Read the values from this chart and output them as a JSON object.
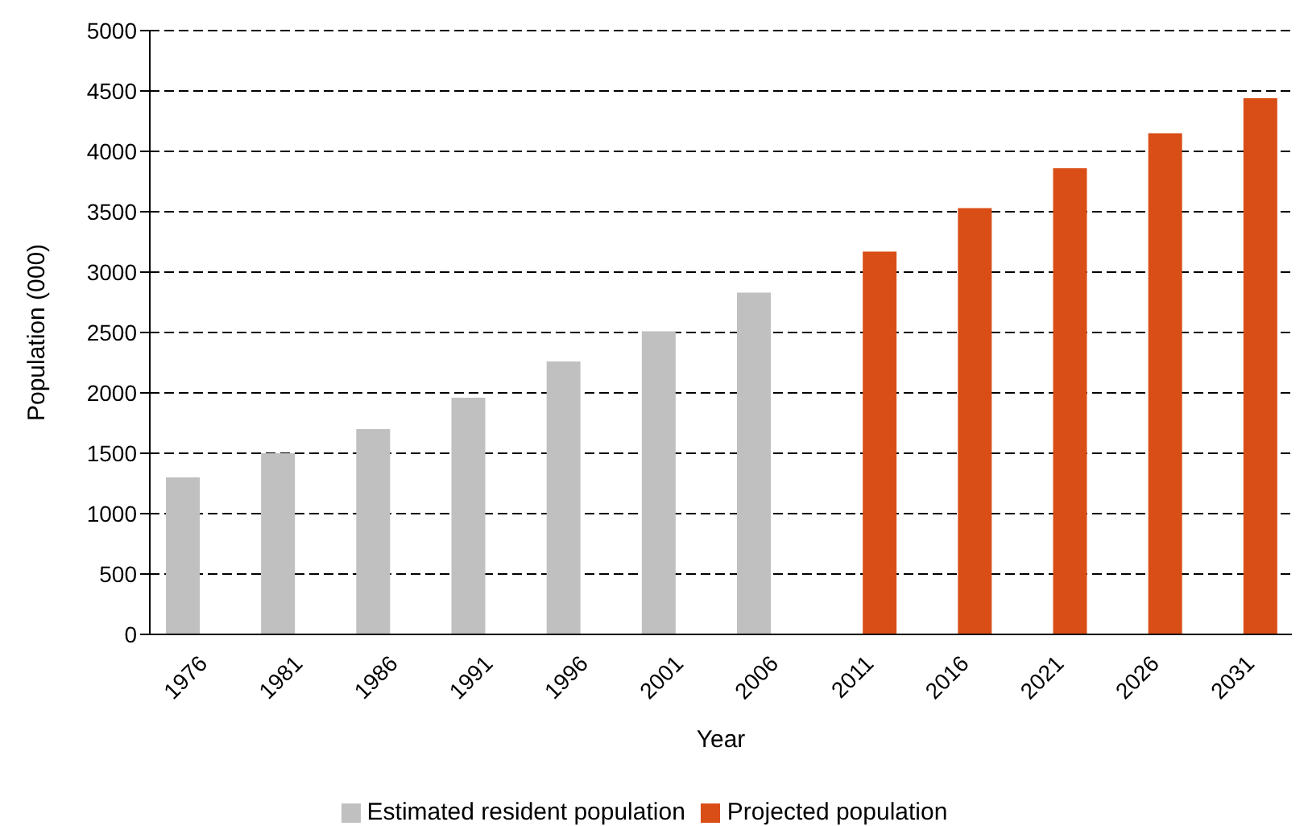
{
  "chart_data": {
    "type": "bar",
    "xlabel": "Year",
    "ylabel": "Population (000)",
    "categories": [
      "1976",
      "1981",
      "1986",
      "1991",
      "1996",
      "2001",
      "2006",
      "2011",
      "2016",
      "2021",
      "2026",
      "2031"
    ],
    "series": [
      {
        "name": "Estimated resident population",
        "color": "#c0c0c0",
        "values": [
          1300,
          1500,
          1700,
          1960,
          2260,
          2510,
          2830,
          null,
          null,
          null,
          null,
          null
        ]
      },
      {
        "name": "Projected population",
        "color": "#d94e17",
        "values": [
          null,
          null,
          null,
          null,
          null,
          null,
          null,
          3170,
          3530,
          3860,
          4150,
          4440
        ]
      }
    ],
    "ylim": [
      0,
      5000
    ],
    "yticks": [
      0,
      500,
      1000,
      1500,
      2000,
      2500,
      3000,
      3500,
      4000,
      4500,
      5000
    ],
    "grid": "y",
    "legend": "bottom"
  }
}
